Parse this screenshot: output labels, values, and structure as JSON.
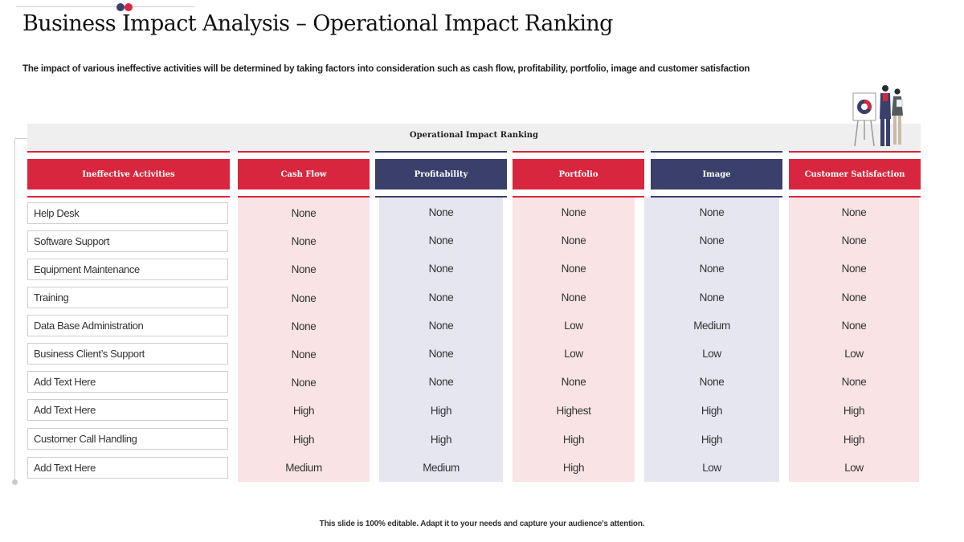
{
  "title": "Business Impact Analysis – Operational Impact Ranking",
  "subtitle": "The impact of various ineffective activities will be determined by taking factors into consideration such as cash flow, profitability, portfolio, image and customer satisfaction",
  "banner": "Operational Impact Ranking",
  "columns": [
    "Ineffective Activities",
    "Cash Flow",
    "Profitability",
    "Portfolio",
    "Image",
    "Customer Satisfaction"
  ],
  "rows": [
    {
      "activity": "Help Desk",
      "values": [
        "None",
        "None",
        "None",
        "None",
        "None"
      ]
    },
    {
      "activity": "Software Support",
      "values": [
        "None",
        "None",
        "None",
        "None",
        "None"
      ]
    },
    {
      "activity": "Equipment Maintenance",
      "values": [
        "None",
        "None",
        "None",
        "None",
        "None"
      ]
    },
    {
      "activity": "Training",
      "values": [
        "None",
        "None",
        "None",
        "None",
        "None"
      ]
    },
    {
      "activity": "Data Base Administration",
      "values": [
        "None",
        "None",
        "Low",
        "Medium",
        "None"
      ]
    },
    {
      "activity": "Business Client’s Support",
      "values": [
        "None",
        "None",
        "Low",
        "Low",
        "Low"
      ]
    },
    {
      "activity": "Add Text Here",
      "values": [
        "None",
        "None",
        "None",
        "None",
        "None"
      ]
    },
    {
      "activity": "Add Text Here",
      "values": [
        "High",
        "High",
        "Highest",
        "High",
        "High"
      ]
    },
    {
      "activity": "Customer Call Handling",
      "values": [
        "High",
        "High",
        "High",
        "High",
        "High"
      ]
    },
    {
      "activity": "Add Text Here",
      "values": [
        "Medium",
        "Medium",
        "High",
        "Low",
        "Low"
      ]
    }
  ],
  "footer": "This slide is 100% editable. Adapt it to your needs and capture your audience's attention.",
  "colors": {
    "red": "#d7263d",
    "navy": "#3b3f6b",
    "pink": "#f9e3e5",
    "lavender": "#e6e6f1"
  },
  "icons": {
    "illustration": "presentation-people-icon"
  }
}
